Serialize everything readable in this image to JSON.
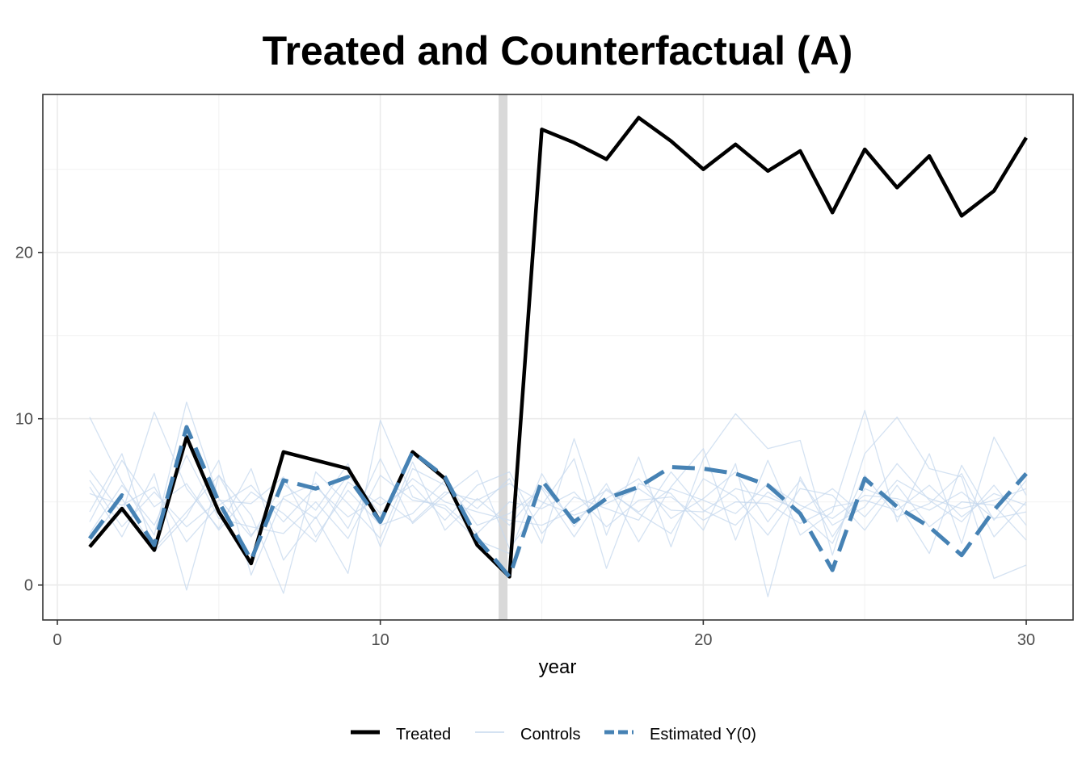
{
  "chart_data": {
    "type": "line",
    "title": "Treated and Counterfactual (A)",
    "xlabel": "year",
    "ylabel": "",
    "xlim": [
      -0.45,
      31.45
    ],
    "ylim": [
      -2.1,
      29.5
    ],
    "x_ticks": [
      0,
      10,
      20,
      30
    ],
    "y_ticks": [
      0,
      10,
      20
    ],
    "x_tick_labels": [
      "0",
      "10",
      "20",
      "30"
    ],
    "y_tick_labels": [
      "0",
      "10",
      "20"
    ],
    "treatment_year": 14,
    "legend_position": "bottom",
    "x": [
      1,
      2,
      3,
      4,
      5,
      6,
      7,
      8,
      9,
      10,
      11,
      12,
      13,
      14,
      15,
      16,
      17,
      18,
      19,
      20,
      21,
      22,
      23,
      24,
      25,
      26,
      27,
      28,
      29,
      30
    ],
    "series": [
      {
        "name": "Treated",
        "role": "treated",
        "color": "#000000",
        "values": [
          2.3,
          4.6,
          2.1,
          8.9,
          4.4,
          1.3,
          8.0,
          7.5,
          7.0,
          3.8,
          8.0,
          6.4,
          2.4,
          0.5,
          27.4,
          26.6,
          25.6,
          28.1,
          26.7,
          25.0,
          26.5,
          24.9,
          26.1,
          22.4,
          26.2,
          23.9,
          25.8,
          22.2,
          23.7,
          26.9
        ]
      },
      {
        "name": "Estimated Y(0)",
        "role": "estimate",
        "color": "#4682b4",
        "values": [
          2.8,
          5.4,
          2.4,
          9.5,
          5.0,
          1.5,
          6.3,
          5.8,
          6.5,
          3.8,
          8.0,
          6.5,
          2.8,
          0.5,
          6.3,
          3.8,
          5.2,
          5.9,
          7.1,
          7.0,
          6.7,
          6.0,
          4.3,
          0.9,
          6.4,
          4.7,
          3.5,
          1.8,
          4.5,
          6.7
        ]
      }
    ],
    "controls": {
      "name": "Controls",
      "color": "#c6d8ee",
      "series": [
        [
          10.1,
          6.2,
          3.0,
          11.0,
          5.2,
          2.9,
          6.1,
          4.5,
          7.3,
          2.3,
          7.0,
          6.0,
          4.6,
          6.4,
          2.5,
          8.8,
          3.0,
          7.7,
          2.3,
          7.6,
          10.3,
          8.2,
          8.7,
          1.8,
          7.9,
          10.1,
          7.0,
          6.5,
          0.4,
          1.2
        ],
        [
          6.9,
          4.3,
          10.4,
          5.8,
          3.4,
          7.0,
          1.5,
          4.1,
          0.7,
          9.9,
          5.3,
          4.6,
          2.7,
          1.9,
          6.7,
          3.5,
          6.1,
          2.6,
          5.9,
          8.2,
          2.7,
          7.5,
          3.0,
          4.4,
          10.5,
          3.8,
          7.9,
          2.5,
          8.9,
          5.4
        ],
        [
          4.4,
          7.9,
          2.0,
          4.1,
          7.5,
          0.6,
          5.3,
          6.1,
          3.4,
          7.6,
          3.7,
          5.4,
          6.9,
          2.2,
          4.8,
          7.6,
          1.0,
          6.1,
          5.5,
          3.3,
          7.3,
          -0.7,
          6.5,
          2.9,
          5.8,
          5.0,
          1.9,
          7.2,
          3.9,
          6.3
        ],
        [
          5.9,
          2.9,
          6.7,
          -0.3,
          6.6,
          4.2,
          -0.5,
          6.8,
          4.9,
          2.8,
          7.4,
          3.3,
          5.2,
          3.6,
          5.9,
          3.9,
          5.2,
          6.4,
          4.0,
          5.2,
          6.8,
          3.8,
          6.3,
          3.6,
          4.7,
          7.3,
          5.1,
          3.8,
          6.0,
          3.6
        ],
        [
          3.8,
          7.5,
          4.7,
          6.1,
          3.3,
          5.6,
          4.3,
          2.6,
          6.2,
          4.8,
          6.0,
          3.9,
          6.0,
          6.8,
          3.1,
          5.3,
          4.6,
          3.9,
          6.8,
          4.5,
          3.6,
          5.6,
          4.3,
          2.5,
          6.6,
          4.1,
          4.9,
          6.7,
          2.9,
          5.0
        ],
        [
          6.3,
          3.5,
          5.6,
          3.5,
          5.1,
          4.9,
          6.5,
          2.9,
          5.7,
          3.6,
          4.3,
          6.3,
          3.6,
          4.3,
          5.8,
          2.9,
          5.8,
          4.3,
          3.1,
          6.4,
          5.3,
          3.0,
          5.8,
          5.4,
          3.3,
          6.0,
          3.5,
          5.0,
          4.8,
          2.7
        ],
        [
          3.1,
          6.0,
          3.6,
          7.8,
          4.0,
          3.5,
          3.1,
          5.0,
          2.8,
          6.6,
          5.1,
          4.8,
          3.1,
          5.0,
          4.6,
          5.6,
          3.5,
          5.1,
          5.3,
          3.9,
          5.0,
          4.9,
          3.7,
          4.7,
          5.1,
          4.5,
          6.0,
          4.1,
          5.5,
          4.8
        ],
        [
          2.6,
          5.2,
          2.2,
          4.4,
          6.6,
          3.0,
          5.2,
          4.0,
          6.6,
          4.3,
          6.4,
          5.0,
          4.4,
          3.9,
          3.6,
          4.5,
          5.7,
          4.4,
          5.8,
          5.1,
          4.3,
          6.1,
          4.8,
          4.0,
          5.4,
          5.2,
          4.5,
          5.6,
          4.0,
          4.4
        ],
        [
          5.5,
          4.8,
          5.9,
          2.6,
          4.8,
          6.0,
          3.8,
          5.9,
          4.1,
          5.3,
          3.8,
          5.6,
          5.1,
          6.1,
          5.0,
          4.2,
          4.9,
          5.8,
          4.5,
          4.4,
          5.8,
          5.3,
          4.5,
          5.8,
          4.1,
          6.3,
          5.2,
          4.6,
          5.1,
          5.8
        ]
      ]
    },
    "legend": [
      {
        "label": "Treated",
        "style": "solid-thick",
        "color": "#000000"
      },
      {
        "label": "Controls",
        "style": "solid-thin",
        "color": "#c6d8ee"
      },
      {
        "label": "Estimated Y(0)",
        "style": "dashed",
        "color": "#4682b4"
      }
    ]
  }
}
